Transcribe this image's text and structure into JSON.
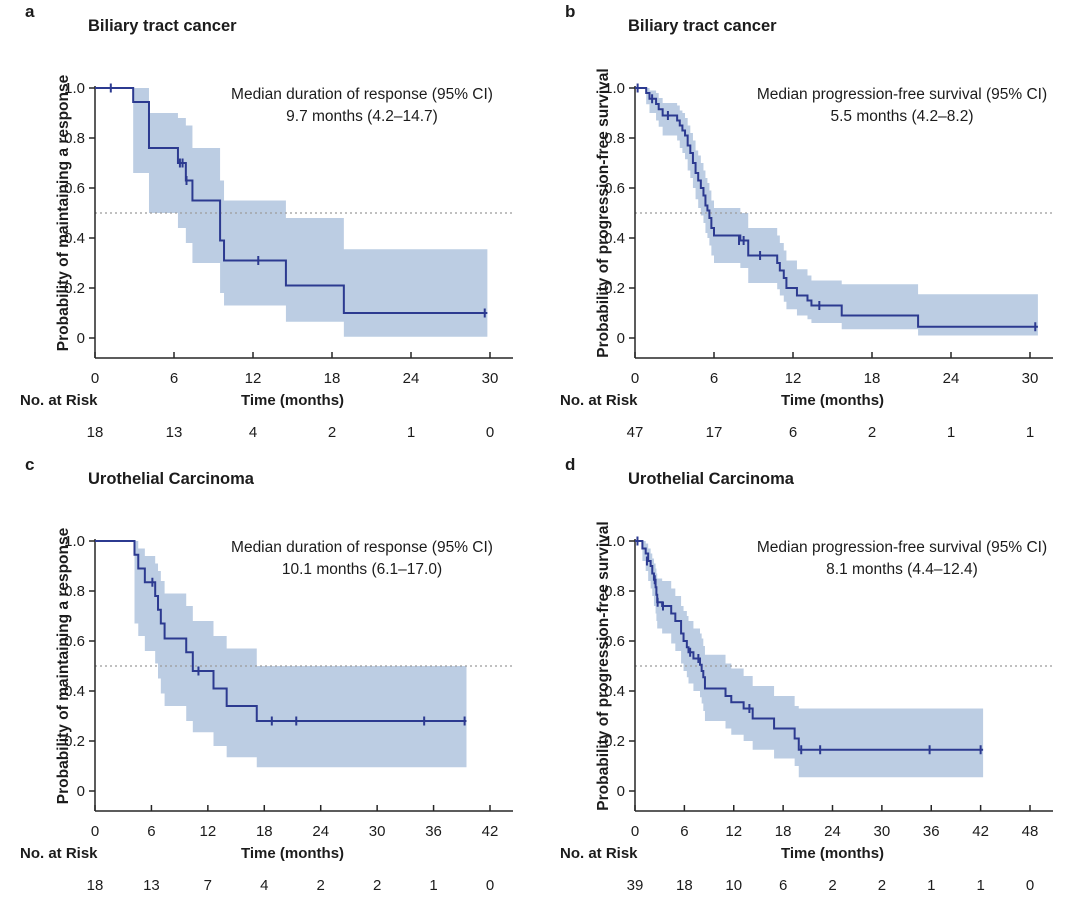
{
  "colors": {
    "curve": "#2c3a90",
    "band": "#bccde3",
    "axis": "#262626",
    "text": "#1c1c1c",
    "guide": "#9b9b9b"
  },
  "chart_data": [
    {
      "type": "line",
      "subtype": "kaplan-meier-step",
      "panel_letter": "a",
      "title": "Biliary tract cancer",
      "ylabel": "Probability of maintaining a response",
      "xlabel": "Time (months)",
      "annotation": [
        "Median duration of response (95% CI)",
        "9.7 months (4.2–14.7)"
      ],
      "median_guide_y": 0.5,
      "ylim": [
        0,
        1
      ],
      "xmax": 30,
      "yticks": [
        "1.0",
        "0.8",
        "0.6",
        "0.4",
        "0.2",
        "0"
      ],
      "xticks": [
        0,
        6,
        12,
        18,
        24,
        30
      ],
      "risk_label": "No. at Risk",
      "at_risk": [
        18,
        13,
        4,
        2,
        1,
        0
      ],
      "end_time": 29.8,
      "steps": [
        [
          0,
          1.0,
          1.0,
          1.0
        ],
        [
          2.9,
          0.944,
          0.66,
          1.0
        ],
        [
          4.1,
          0.76,
          0.5,
          0.9
        ],
        [
          6.3,
          0.7,
          0.44,
          0.88
        ],
        [
          6.9,
          0.63,
          0.38,
          0.85
        ],
        [
          7.4,
          0.55,
          0.3,
          0.76
        ],
        [
          9.5,
          0.39,
          0.18,
          0.63
        ],
        [
          9.8,
          0.31,
          0.13,
          0.55
        ],
        [
          14.5,
          0.21,
          0.065,
          0.48
        ],
        [
          18.9,
          0.1,
          0.005,
          0.355
        ]
      ],
      "censors": [
        [
          1.2,
          1.0
        ],
        [
          6.45,
          0.7
        ],
        [
          6.65,
          0.7
        ],
        [
          6.95,
          0.63
        ],
        [
          12.4,
          0.31
        ],
        [
          29.6,
          0.1
        ]
      ]
    },
    {
      "type": "line",
      "subtype": "kaplan-meier-step",
      "panel_letter": "b",
      "title": "Biliary tract cancer",
      "ylabel": "Probability of progression-free survival",
      "xlabel": "Time (months)",
      "annotation": [
        "Median progression-free survival (95% CI)",
        "5.5 months (4.2–8.2)"
      ],
      "median_guide_y": 0.5,
      "ylim": [
        0,
        1
      ],
      "xmax": 30,
      "yticks": [
        "1.0",
        "0.8",
        "0.6",
        "0.4",
        "0.2",
        "0"
      ],
      "xticks": [
        0,
        6,
        12,
        18,
        24,
        30
      ],
      "risk_label": "No. at Risk",
      "at_risk": [
        47,
        17,
        6,
        2,
        1,
        1
      ],
      "end_time": 30.6,
      "steps": [
        [
          0,
          1.0,
          1.0,
          1.0
        ],
        [
          0.85,
          0.98,
          0.935,
          1.0
        ],
        [
          1.1,
          0.957,
          0.9,
          0.99
        ],
        [
          1.6,
          0.936,
          0.87,
          0.98
        ],
        [
          1.8,
          0.915,
          0.845,
          0.96
        ],
        [
          2.1,
          0.89,
          0.81,
          0.94
        ],
        [
          3.2,
          0.87,
          0.79,
          0.93
        ],
        [
          3.4,
          0.85,
          0.76,
          0.91
        ],
        [
          3.6,
          0.83,
          0.74,
          0.9
        ],
        [
          3.8,
          0.81,
          0.715,
          0.88
        ],
        [
          4.0,
          0.77,
          0.67,
          0.85
        ],
        [
          4.2,
          0.74,
          0.64,
          0.82
        ],
        [
          4.4,
          0.7,
          0.6,
          0.79
        ],
        [
          4.6,
          0.66,
          0.555,
          0.75
        ],
        [
          4.8,
          0.63,
          0.52,
          0.73
        ],
        [
          5.0,
          0.6,
          0.49,
          0.7
        ],
        [
          5.2,
          0.57,
          0.46,
          0.67
        ],
        [
          5.35,
          0.53,
          0.42,
          0.64
        ],
        [
          5.5,
          0.51,
          0.4,
          0.62
        ],
        [
          5.65,
          0.48,
          0.37,
          0.59
        ],
        [
          5.8,
          0.44,
          0.33,
          0.55
        ],
        [
          6.0,
          0.41,
          0.3,
          0.52
        ],
        [
          8.0,
          0.39,
          0.28,
          0.5
        ],
        [
          8.6,
          0.33,
          0.22,
          0.44
        ],
        [
          10.8,
          0.3,
          0.195,
          0.41
        ],
        [
          11.0,
          0.27,
          0.17,
          0.38
        ],
        [
          11.3,
          0.24,
          0.145,
          0.35
        ],
        [
          11.5,
          0.2,
          0.115,
          0.31
        ],
        [
          12.3,
          0.17,
          0.09,
          0.275
        ],
        [
          13.1,
          0.15,
          0.075,
          0.25
        ],
        [
          13.4,
          0.13,
          0.06,
          0.23
        ],
        [
          15.7,
          0.09,
          0.035,
          0.215
        ],
        [
          21.5,
          0.045,
          0.01,
          0.175
        ]
      ],
      "censors": [
        [
          0.2,
          1.0
        ],
        [
          1.3,
          0.957
        ],
        [
          2.5,
          0.89
        ],
        [
          7.9,
          0.39
        ],
        [
          8.25,
          0.39
        ],
        [
          9.5,
          0.33
        ],
        [
          14.0,
          0.13
        ],
        [
          30.4,
          0.045
        ]
      ]
    },
    {
      "type": "line",
      "subtype": "kaplan-meier-step",
      "panel_letter": "c",
      "title": "Urothelial Carcinoma",
      "ylabel": "Probability of maintaining a response",
      "xlabel": "Time (months)",
      "annotation": [
        "Median duration of response (95% CI)",
        "10.1 months (6.1–17.0)"
      ],
      "median_guide_y": 0.5,
      "ylim": [
        0,
        1
      ],
      "xmax": 42,
      "yticks": [
        "1.0",
        "0.8",
        "0.6",
        "0.4",
        "0.2",
        "0"
      ],
      "xticks": [
        0,
        6,
        12,
        18,
        24,
        30,
        36,
        42
      ],
      "risk_label": "No. at Risk",
      "at_risk": [
        18,
        13,
        7,
        4,
        2,
        2,
        1,
        0
      ],
      "end_time": 39.5,
      "steps": [
        [
          0,
          1.0,
          1.0,
          1.0
        ],
        [
          4.2,
          0.945,
          0.67,
          1.0
        ],
        [
          4.6,
          0.89,
          0.62,
          0.97
        ],
        [
          5.3,
          0.835,
          0.56,
          0.94
        ],
        [
          6.4,
          0.78,
          0.51,
          0.91
        ],
        [
          6.7,
          0.725,
          0.45,
          0.88
        ],
        [
          7.0,
          0.67,
          0.39,
          0.84
        ],
        [
          7.4,
          0.61,
          0.34,
          0.79
        ],
        [
          9.7,
          0.555,
          0.28,
          0.74
        ],
        [
          10.4,
          0.48,
          0.235,
          0.68
        ],
        [
          12.6,
          0.41,
          0.18,
          0.62
        ],
        [
          14.0,
          0.34,
          0.135,
          0.57
        ],
        [
          17.2,
          0.28,
          0.095,
          0.5
        ]
      ],
      "censors": [
        [
          6.1,
          0.835
        ],
        [
          11.0,
          0.48
        ],
        [
          18.8,
          0.28
        ],
        [
          21.4,
          0.28
        ],
        [
          35.0,
          0.28
        ],
        [
          39.3,
          0.28
        ]
      ]
    },
    {
      "type": "line",
      "subtype": "kaplan-meier-step",
      "panel_letter": "d",
      "title": "Urothelial Carcinoma",
      "ylabel": "Probability of progression-free survival",
      "xlabel": "Time (months)",
      "annotation": [
        "Median progression-free survival (95% CI)",
        "8.1 months (4.4–12.4)"
      ],
      "median_guide_y": 0.5,
      "ylim": [
        0,
        1
      ],
      "xmax": 48,
      "yticks": [
        "1.0",
        "0.8",
        "0.6",
        "0.4",
        "0.2",
        "0"
      ],
      "xticks": [
        0,
        6,
        12,
        18,
        24,
        30,
        36,
        42,
        48
      ],
      "risk_label": "No. at Risk",
      "at_risk": [
        39,
        18,
        10,
        6,
        2,
        2,
        1,
        1,
        0
      ],
      "end_time": 42.3,
      "steps": [
        [
          0,
          1.0,
          1.0,
          1.0
        ],
        [
          0.9,
          0.97,
          0.92,
          1.0
        ],
        [
          1.3,
          0.95,
          0.88,
          0.99
        ],
        [
          1.6,
          0.92,
          0.84,
          0.97
        ],
        [
          1.9,
          0.9,
          0.81,
          0.95
        ],
        [
          2.1,
          0.87,
          0.78,
          0.93
        ],
        [
          2.3,
          0.845,
          0.74,
          0.91
        ],
        [
          2.5,
          0.815,
          0.71,
          0.89
        ],
        [
          2.6,
          0.785,
          0.68,
          0.87
        ],
        [
          2.7,
          0.755,
          0.65,
          0.85
        ],
        [
          3.3,
          0.74,
          0.63,
          0.84
        ],
        [
          4.4,
          0.71,
          0.59,
          0.81
        ],
        [
          4.9,
          0.68,
          0.56,
          0.78
        ],
        [
          5.6,
          0.63,
          0.51,
          0.74
        ],
        [
          5.9,
          0.6,
          0.48,
          0.72
        ],
        [
          6.3,
          0.575,
          0.455,
          0.7
        ],
        [
          6.5,
          0.555,
          0.43,
          0.68
        ],
        [
          7.1,
          0.53,
          0.4,
          0.65
        ],
        [
          7.9,
          0.505,
          0.375,
          0.63
        ],
        [
          8.1,
          0.48,
          0.35,
          0.61
        ],
        [
          8.3,
          0.455,
          0.32,
          0.58
        ],
        [
          8.5,
          0.41,
          0.28,
          0.545
        ],
        [
          11.0,
          0.38,
          0.25,
          0.51
        ],
        [
          11.7,
          0.355,
          0.225,
          0.49
        ],
        [
          13.2,
          0.33,
          0.2,
          0.46
        ],
        [
          14.3,
          0.29,
          0.165,
          0.42
        ],
        [
          16.9,
          0.25,
          0.13,
          0.38
        ],
        [
          19.4,
          0.21,
          0.1,
          0.34
        ],
        [
          19.9,
          0.165,
          0.055,
          0.33
        ]
      ],
      "censors": [
        [
          0.3,
          1.0
        ],
        [
          1.45,
          0.92
        ],
        [
          2.4,
          0.845
        ],
        [
          2.75,
          0.755
        ],
        [
          3.4,
          0.74
        ],
        [
          6.7,
          0.555
        ],
        [
          7.7,
          0.53
        ],
        [
          13.9,
          0.33
        ],
        [
          20.2,
          0.165
        ],
        [
          22.5,
          0.165
        ],
        [
          35.8,
          0.165
        ],
        [
          42.0,
          0.165
        ]
      ]
    }
  ]
}
